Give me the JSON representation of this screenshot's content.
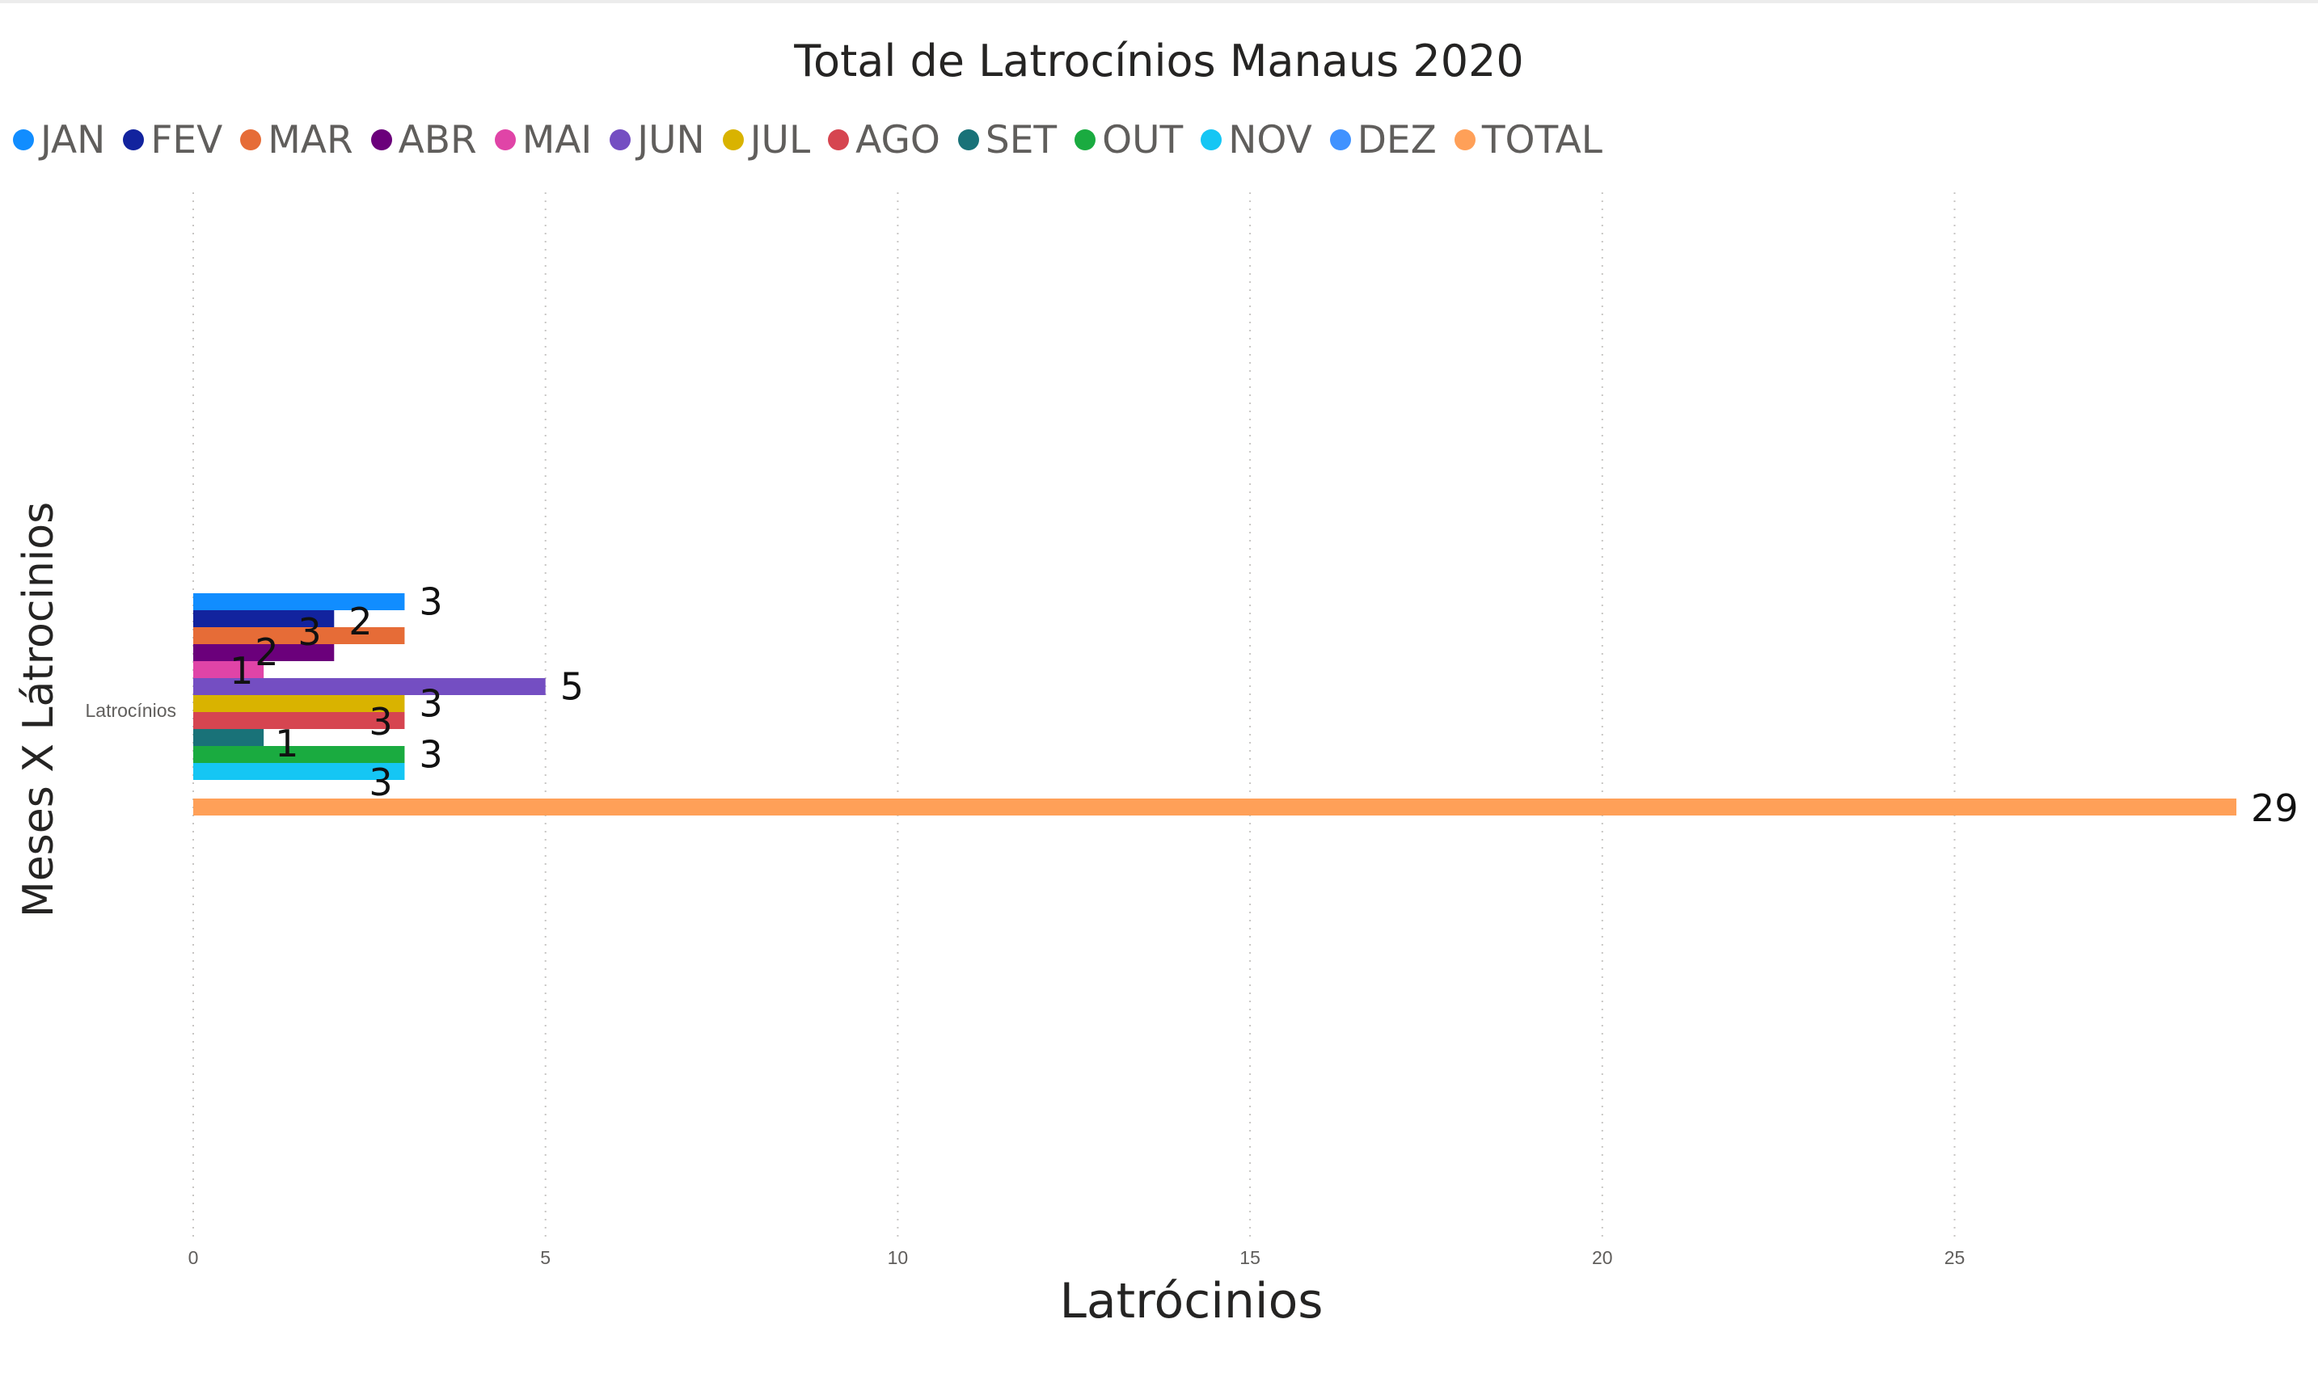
{
  "chart_data": {
    "type": "bar",
    "orientation": "horizontal",
    "title": "Total de Latrocínios Manaus 2020",
    "xlabel": "Latrócinios",
    "ylabel": "Meses X Látrocinios",
    "categories": [
      "Latrocínios"
    ],
    "xlim": [
      0,
      29
    ],
    "x_ticks": [
      0,
      5,
      10,
      15,
      20,
      25
    ],
    "grid": true,
    "legend_position": "top-left",
    "series": [
      {
        "name": "JAN",
        "values": [
          3
        ],
        "color": "#118DFF"
      },
      {
        "name": "FEV",
        "values": [
          2
        ],
        "color": "#12239E"
      },
      {
        "name": "MAR",
        "values": [
          3
        ],
        "color": "#E66C37"
      },
      {
        "name": "ABR",
        "values": [
          2
        ],
        "color": "#6B007B"
      },
      {
        "name": "MAI",
        "values": [
          1
        ],
        "color": "#E044A7"
      },
      {
        "name": "JUN",
        "values": [
          5
        ],
        "color": "#744EC2"
      },
      {
        "name": "JUL",
        "values": [
          3
        ],
        "color": "#D9B300"
      },
      {
        "name": "AGO",
        "values": [
          3
        ],
        "color": "#D64550"
      },
      {
        "name": "SET",
        "values": [
          1
        ],
        "color": "#197278"
      },
      {
        "name": "OUT",
        "values": [
          3
        ],
        "color": "#1AAB40"
      },
      {
        "name": "NOV",
        "values": [
          3
        ],
        "color": "#15C6F4"
      },
      {
        "name": "DEZ",
        "values": [
          0
        ],
        "color": "#4092FF"
      },
      {
        "name": "TOTAL",
        "values": [
          29
        ],
        "color": "#FFA058"
      }
    ]
  }
}
